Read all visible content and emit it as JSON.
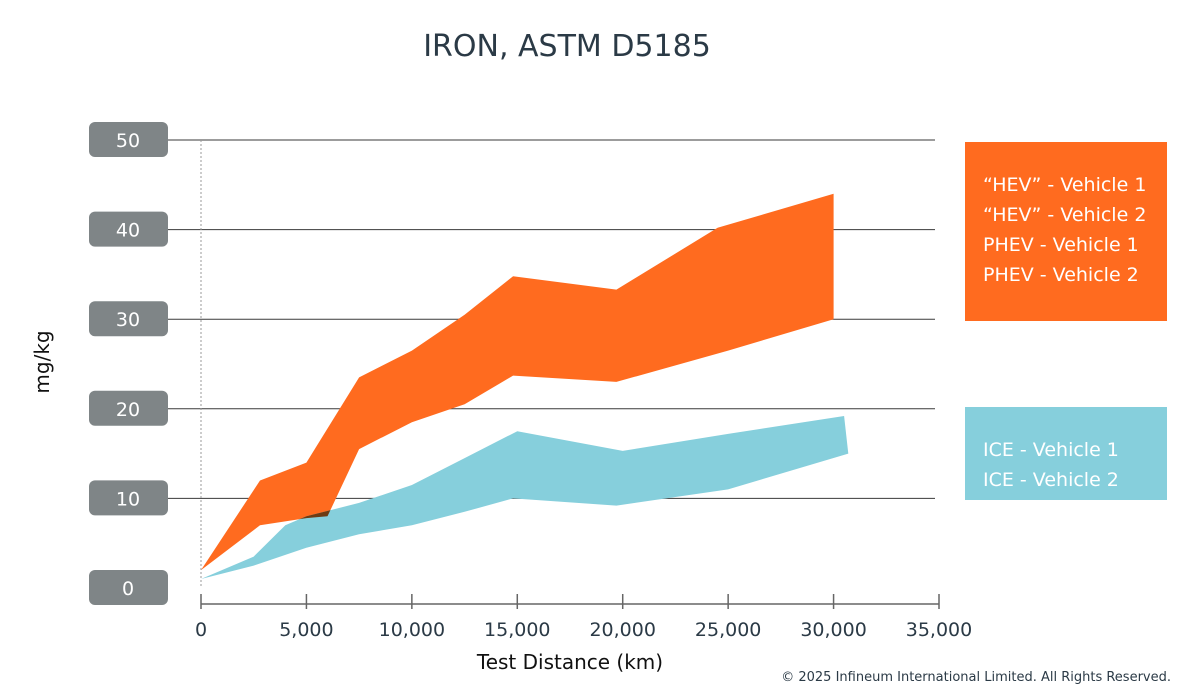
{
  "chart_data": {
    "type": "area",
    "title": "IRON, ASTM D5185",
    "xlabel": "Test Distance (km)",
    "ylabel": "mg/kg",
    "xlim": [
      0,
      35000
    ],
    "ylim": [
      0,
      50
    ],
    "x_ticks": [
      0,
      5000,
      10000,
      15000,
      20000,
      25000,
      30000,
      35000
    ],
    "x_tick_labels": [
      "0",
      "5,000",
      "10,000",
      "15,000",
      "20,000",
      "25,000",
      "30,000",
      "35,000"
    ],
    "y_ticks": [
      0,
      10,
      20,
      30,
      40,
      50
    ],
    "y_tick_labels": [
      "0",
      "10",
      "20",
      "30",
      "40",
      "50"
    ],
    "grid": "horizontal",
    "legend_position": "right",
    "series": [
      {
        "group": "HEV/PHEV band",
        "color": "#ff6b1f",
        "legend": [
          "“HEV” - Vehicle 1",
          "“HEV” - Vehicle 2",
          "PHEV - Vehicle 1",
          "PHEV - Vehicle 2"
        ],
        "upper": [
          [
            0,
            2
          ],
          [
            2800,
            12
          ],
          [
            5000,
            14
          ],
          [
            7500,
            23.5
          ],
          [
            10000,
            26.5
          ],
          [
            12500,
            30.5
          ],
          [
            14800,
            34.8
          ],
          [
            19700,
            33.3
          ],
          [
            24500,
            40.2
          ],
          [
            30000,
            44
          ]
        ],
        "lower": [
          [
            0,
            2
          ],
          [
            2800,
            7
          ],
          [
            5000,
            7.8
          ],
          [
            6000,
            8
          ],
          [
            7500,
            15.5
          ],
          [
            10000,
            18.5
          ],
          [
            12500,
            20.5
          ],
          [
            14800,
            23.7
          ],
          [
            19700,
            23
          ],
          [
            25000,
            26.5
          ],
          [
            30000,
            30
          ]
        ]
      },
      {
        "group": "ICE band",
        "color": "#86cfdc",
        "legend": [
          "ICE - Vehicle 1",
          "ICE - Vehicle 2"
        ],
        "upper": [
          [
            0,
            1
          ],
          [
            2500,
            3.5
          ],
          [
            4000,
            7
          ],
          [
            5000,
            8
          ],
          [
            7500,
            9.5
          ],
          [
            10000,
            11.5
          ],
          [
            12500,
            14.5
          ],
          [
            15000,
            17.5
          ],
          [
            20000,
            15.3
          ],
          [
            25000,
            17.2
          ],
          [
            30500,
            19.2
          ]
        ],
        "lower": [
          [
            0,
            1
          ],
          [
            2500,
            2.5
          ],
          [
            5000,
            4.5
          ],
          [
            7500,
            6
          ],
          [
            10000,
            7
          ],
          [
            12500,
            8.5
          ],
          [
            14800,
            10
          ],
          [
            19700,
            9.2
          ],
          [
            25000,
            11
          ],
          [
            30700,
            15
          ]
        ]
      }
    ],
    "overlap_color": "#6e3c14"
  },
  "copyright": "© 2025 Infineum International Limited. All Rights Reserved."
}
